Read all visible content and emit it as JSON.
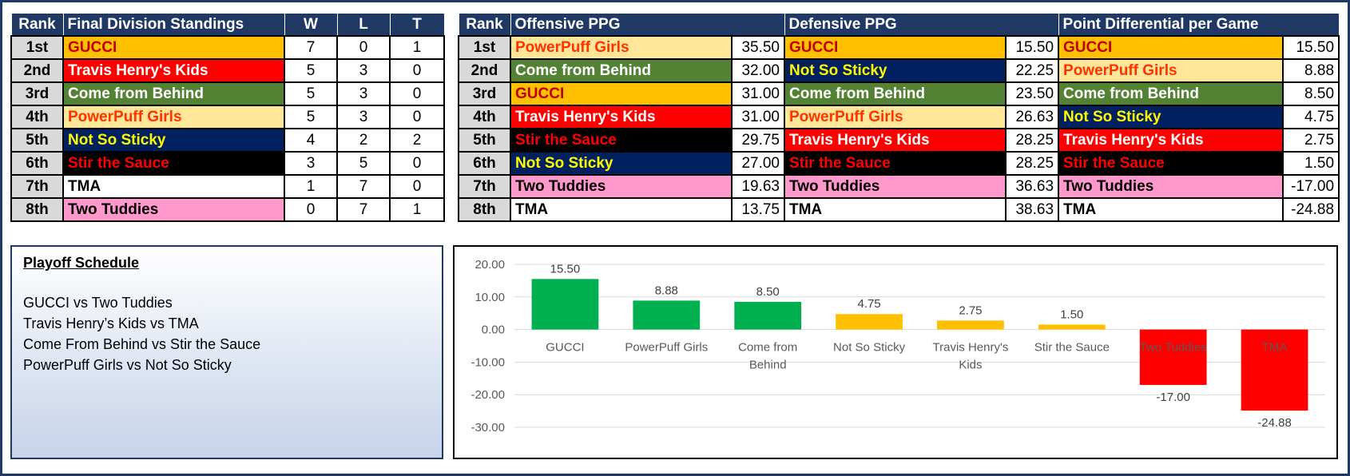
{
  "colors": {
    "header_bg": "#1f3864",
    "rank_bg": "#d9d9d9",
    "bar_positive_high": "#00b050",
    "bar_positive_low": "#ffc000",
    "bar_negative": "#ff0000"
  },
  "teams": {
    "GUCCI": {
      "bg": "#ffc000",
      "fg": "#c00000"
    },
    "Travis Henry's Kids": {
      "bg": "#ff0000",
      "fg": "#ffffff"
    },
    "Come from Behind": {
      "bg": "#548235",
      "fg": "#ffffff"
    },
    "PowerPuff Girls": {
      "bg": "#ffe699",
      "fg": "#ff3300"
    },
    "Not So Sticky": {
      "bg": "#002060",
      "fg": "#ffff00"
    },
    "Stir the Sauce": {
      "bg": "#000000",
      "fg": "#ff0000"
    },
    "TMA": {
      "bg": "#ffffff",
      "fg": "#000000"
    },
    "Two Tuddies": {
      "bg": "#ff99cc",
      "fg": "#000000"
    }
  },
  "standings": {
    "headers": {
      "rank": "Rank",
      "team": "Final Division Standings",
      "w": "W",
      "l": "L",
      "t": "T"
    },
    "rows": [
      {
        "rank": "1st",
        "team": "GUCCI",
        "w": "7",
        "l": "0",
        "t": "1"
      },
      {
        "rank": "2nd",
        "team": "Travis Henry's Kids",
        "w": "5",
        "l": "3",
        "t": "0"
      },
      {
        "rank": "3rd",
        "team": "Come from Behind",
        "w": "5",
        "l": "3",
        "t": "0"
      },
      {
        "rank": "4th",
        "team": "PowerPuff Girls",
        "w": "5",
        "l": "3",
        "t": "0"
      },
      {
        "rank": "5th",
        "team": "Not So Sticky",
        "w": "4",
        "l": "2",
        "t": "2"
      },
      {
        "rank": "6th",
        "team": "Stir the Sauce",
        "w": "3",
        "l": "5",
        "t": "0"
      },
      {
        "rank": "7th",
        "team": "TMA",
        "w": "1",
        "l": "7",
        "t": "0"
      },
      {
        "rank": "8th",
        "team": "Two Tuddies",
        "w": "0",
        "l": "7",
        "t": "1"
      }
    ]
  },
  "ppg": {
    "headers": {
      "rank": "Rank",
      "offense": "Offensive PPG",
      "defense": "Defensive PPG",
      "diff": "Point Differential per Game"
    },
    "rows": [
      {
        "rank": "1st",
        "off_team": "PowerPuff Girls",
        "off_val": "35.50",
        "def_team": "GUCCI",
        "def_val": "15.50",
        "diff_team": "GUCCI",
        "diff_val": "15.50"
      },
      {
        "rank": "2nd",
        "off_team": "Come from Behind",
        "off_val": "32.00",
        "def_team": "Not So Sticky",
        "def_val": "22.25",
        "diff_team": "PowerPuff Girls",
        "diff_val": "8.88"
      },
      {
        "rank": "3rd",
        "off_team": "GUCCI",
        "off_val": "31.00",
        "def_team": "Come from Behind",
        "def_val": "23.50",
        "diff_team": "Come from Behind",
        "diff_val": "8.50"
      },
      {
        "rank": "4th",
        "off_team": "Travis Henry's Kids",
        "off_val": "31.00",
        "def_team": "PowerPuff Girls",
        "def_val": "26.63",
        "diff_team": "Not So Sticky",
        "diff_val": "4.75"
      },
      {
        "rank": "5th",
        "off_team": "Stir the Sauce",
        "off_val": "29.75",
        "def_team": "Travis Henry's Kids",
        "def_val": "28.25",
        "diff_team": "Travis Henry's Kids",
        "diff_val": "2.75"
      },
      {
        "rank": "6th",
        "off_team": "Not So Sticky",
        "off_val": "27.00",
        "def_team": "Stir the Sauce",
        "def_val": "28.25",
        "diff_team": "Stir the Sauce",
        "diff_val": "1.50"
      },
      {
        "rank": "7th",
        "off_team": "Two Tuddies",
        "off_val": "19.63",
        "def_team": "Two Tuddies",
        "def_val": "36.63",
        "diff_team": "Two Tuddies",
        "diff_val": "-17.00"
      },
      {
        "rank": "8th",
        "off_team": "TMA",
        "off_val": "13.75",
        "def_team": "TMA",
        "def_val": "38.63",
        "diff_team": "TMA",
        "diff_val": "-24.88"
      }
    ]
  },
  "playoff": {
    "title": "Playoff Schedule",
    "matchups": [
      "GUCCI vs Two Tuddies",
      "Travis Henry’s Kids vs TMA",
      "Come From Behind vs Stir the Sauce",
      "PowerPuff Girls vs Not So Sticky"
    ]
  },
  "chart_data": {
    "type": "bar",
    "title": "",
    "xlabel": "",
    "ylabel": "",
    "ylim": [
      -30,
      20
    ],
    "yticks": [
      "20.00",
      "10.00",
      "0.00",
      "-10.00",
      "-20.00",
      "-30.00"
    ],
    "ytick_values": [
      20,
      10,
      0,
      -10,
      -20,
      -30
    ],
    "grid": true,
    "categories": [
      [
        "GUCCI"
      ],
      [
        "PowerPuff Girls"
      ],
      [
        "Come from",
        "Behind"
      ],
      [
        "Not So Sticky"
      ],
      [
        "Travis Henry's",
        "Kids"
      ],
      [
        "Stir the Sauce"
      ],
      [
        "Two Tuddies"
      ],
      [
        "TMA"
      ]
    ],
    "values": [
      15.5,
      8.88,
      8.5,
      4.75,
      2.75,
      1.5,
      -17.0,
      -24.88
    ],
    "data_labels": [
      "15.50",
      "8.88",
      "8.50",
      "4.75",
      "2.75",
      "1.50",
      "-17.00",
      "-24.88"
    ],
    "bar_colors": [
      "#00b050",
      "#00b050",
      "#00b050",
      "#ffc000",
      "#ffc000",
      "#ffc000",
      "#ff0000",
      "#ff0000"
    ]
  }
}
